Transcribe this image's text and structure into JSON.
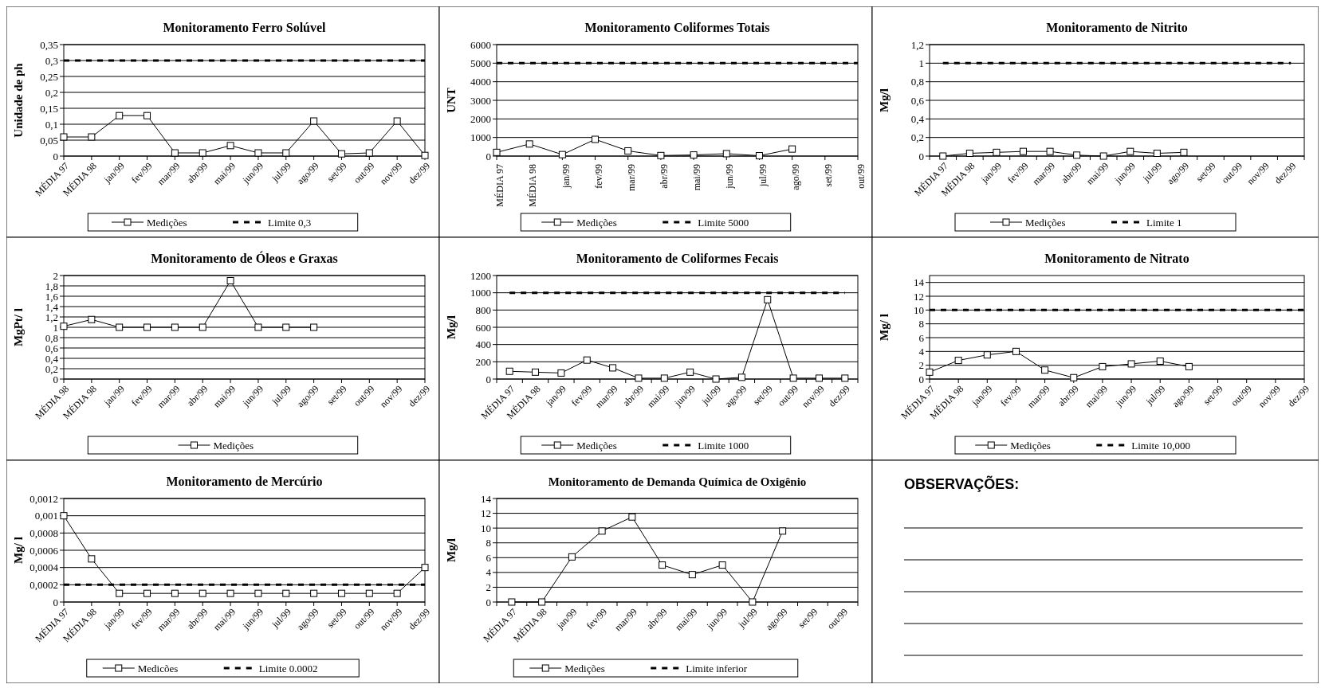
{
  "chart_data": [
    {
      "type": "line",
      "title": "Monitoramento Ferro Solúvel",
      "ylabel": "Unidade de ph",
      "categories": [
        "MÉDIA 97",
        "MÉDIA 98",
        "jan/99",
        "fev/99",
        "mar/99",
        "abr/99",
        "mai/99",
        "jun/99",
        "jul/99",
        "ago/99",
        "set/99",
        "out/99",
        "nov/99",
        "dez/99"
      ],
      "ylim": [
        0,
        0.35
      ],
      "yticks": [
        0,
        {
          "value": 0.05,
          "label": "0,05"
        },
        {
          "value": 0.1,
          "label": "0,1"
        },
        {
          "value": 0.15,
          "label": "0,15"
        },
        {
          "value": 0.2,
          "label": "0,2"
        },
        {
          "value": 0.25,
          "label": "0,25"
        },
        {
          "value": 0.3,
          "label": "0,3"
        },
        {
          "value": 0.35,
          "label": "0,35"
        }
      ],
      "grid": "y",
      "legend": "bottom",
      "series": [
        {
          "name": "Medições",
          "color": "#000000",
          "marker": "square",
          "line_style": "solid",
          "values": [
            0.06,
            0.06,
            0.127,
            0.127,
            0.01,
            0.01,
            0.033,
            0.01,
            0.01,
            0.11,
            0.007,
            0.01,
            0.11,
            0.002
          ]
        },
        {
          "name": "Limite 0,3",
          "color": "#000000",
          "marker": "none",
          "line_style": "dashed",
          "values": [
            0.3,
            0.3,
            0.3,
            0.3,
            0.3,
            0.3,
            0.3,
            0.3,
            0.3,
            0.3,
            0.3,
            0.3,
            0.3,
            0.3
          ]
        }
      ]
    },
    {
      "type": "line",
      "title": "Monitoramento Coliformes Totais",
      "ylabel": "UNT",
      "categories": [
        "MÉDIA 97",
        "MÉDIA 98",
        "jan/99",
        "fev/99",
        "mar/99",
        "abr/99",
        "mai/99",
        "jun/99",
        "jul/99",
        "ago/99",
        "set/99",
        "out/99"
      ],
      "ylim": [
        0,
        6000
      ],
      "yticks": [
        0,
        1000,
        2000,
        3000,
        4000,
        5000,
        6000
      ],
      "grid": "y",
      "legend": "bottom",
      "series": [
        {
          "name": "Medições",
          "color": "#000000",
          "marker": "square",
          "line_style": "solid",
          "values": [
            200,
            650,
            80,
            900,
            280,
            30,
            60,
            130,
            20,
            380,
            null,
            null
          ]
        },
        {
          "name": "Limite 5000",
          "color": "#000000",
          "marker": "none",
          "line_style": "dashed",
          "values": [
            5000,
            5000,
            5000,
            5000,
            5000,
            5000,
            5000,
            5000,
            5000,
            5000,
            5000,
            5000
          ]
        }
      ]
    },
    {
      "type": "line",
      "title": "Monitoramento de Nitrito",
      "ylabel": "Mg/l",
      "categories": [
        "MÉDIA 97",
        "MÉDIA 98",
        "jan/99",
        "fev/99",
        "mar/99",
        "abr/99",
        "mai/99",
        "jun/99",
        "jul/99",
        "ago/99",
        "set/99",
        "out/99",
        "nov/99",
        "dez/99"
      ],
      "ylim": [
        0,
        1.2
      ],
      "yticks": [
        0,
        {
          "value": 0.2,
          "label": "0,2"
        },
        {
          "value": 0.4,
          "label": "0,4"
        },
        {
          "value": 0.6,
          "label": "0,6"
        },
        {
          "value": 0.8,
          "label": "0,8"
        },
        1,
        {
          "value": 1.2,
          "label": "1,2"
        }
      ],
      "grid": "y",
      "legend": "bottom",
      "series": [
        {
          "name": "Medições",
          "color": "#000000",
          "marker": "square",
          "line_style": "solid",
          "values": [
            0,
            0.03,
            0.04,
            0.05,
            0.05,
            0.01,
            0,
            0.05,
            0.03,
            0.04,
            null,
            null,
            null,
            null
          ]
        },
        {
          "name": "Limite 1",
          "color": "#000000",
          "marker": "none",
          "line_style": "dashed",
          "values": [
            1,
            1,
            1,
            1,
            1,
            1,
            1,
            1,
            1,
            1,
            1,
            1,
            1,
            1
          ]
        }
      ]
    },
    {
      "type": "line",
      "title": "Monitoramento de Óleos e Graxas",
      "ylabel": "MgPt/ l",
      "categories": [
        "MÉDIA 98",
        "MÉDIA 98",
        "jan/99",
        "fev/99",
        "mar/99",
        "abr/99",
        "mai/99",
        "jun/99",
        "jul/99",
        "ago/99",
        "set/99",
        "out/99",
        "nov/99",
        "dez/99"
      ],
      "ylim": [
        0,
        2
      ],
      "yticks": [
        0,
        {
          "value": 0.2,
          "label": "0,2"
        },
        {
          "value": 0.4,
          "label": "0,4"
        },
        {
          "value": 0.6,
          "label": "0,6"
        },
        {
          "value": 0.8,
          "label": "0,8"
        },
        1,
        {
          "value": 1.2,
          "label": "1,2"
        },
        {
          "value": 1.4,
          "label": "1,4"
        },
        {
          "value": 1.6,
          "label": "1,6"
        },
        {
          "value": 1.8,
          "label": "1,8"
        },
        2
      ],
      "grid": "y",
      "legend": "bottom",
      "series": [
        {
          "name": "Medições",
          "color": "#000000",
          "marker": "square",
          "line_style": "solid",
          "values": [
            1.02,
            1.15,
            1,
            1,
            1,
            1,
            1.9,
            1,
            1,
            1,
            null,
            null,
            null,
            null
          ]
        }
      ]
    },
    {
      "type": "line",
      "title": "Monitoramento de Coliformes Fecais",
      "ylabel": "Mg/l",
      "categories": [
        "MÉDIA 97",
        "MÉDIA 98",
        "jan/99",
        "fev/99",
        "mar/99",
        "abr/99",
        "mai/99",
        "jun/99",
        "jul/99",
        "ago/99",
        "set/99",
        "out/99",
        "nov/99",
        "dez/99"
      ],
      "ylim": [
        0,
        1200
      ],
      "yticks": [
        0,
        200,
        400,
        600,
        800,
        1000,
        1200
      ],
      "grid": "y",
      "legend": "bottom",
      "series": [
        {
          "name": "Medições",
          "color": "#000000",
          "marker": "square",
          "line_style": "solid",
          "values": [
            90,
            80,
            70,
            220,
            130,
            10,
            10,
            80,
            0,
            20,
            920,
            10,
            10,
            10
          ]
        },
        {
          "name": "Limite 1000",
          "color": "#000000",
          "marker": "none",
          "line_style": "dashed",
          "values": [
            1000,
            1000,
            1000,
            1000,
            1000,
            1000,
            1000,
            1000,
            1000,
            1000,
            1000,
            1000,
            1000,
            1000
          ]
        }
      ]
    },
    {
      "type": "line",
      "title": "Monitoramento de Nitrato",
      "ylabel": "Mg/ l",
      "categories": [
        "MÉDIA 97",
        "MÉDIA 98",
        "jan/99",
        "fev/99",
        "mar/99",
        "abr/99",
        "mai/99",
        "jun/99",
        "jul/99",
        "ago/99",
        "set/99",
        "out/99",
        "nov/99",
        "dez/99"
      ],
      "ylim": [
        0,
        15
      ],
      "yticks": [
        0,
        2,
        4,
        6,
        8,
        10,
        12,
        14
      ],
      "grid": "y",
      "legend": "bottom",
      "series": [
        {
          "name": "Medições",
          "color": "#000000",
          "marker": "square",
          "line_style": "solid",
          "values": [
            1,
            2.7,
            3.5,
            4,
            1.3,
            0.2,
            1.8,
            2.2,
            2.6,
            1.8,
            null,
            null,
            null,
            null
          ]
        },
        {
          "name": "Limite 10,000",
          "color": "#000000",
          "marker": "none",
          "line_style": "dashed",
          "values": [
            10,
            10,
            10,
            10,
            10,
            10,
            10,
            10,
            10,
            10,
            10,
            10,
            10,
            10
          ]
        }
      ]
    },
    {
      "type": "line",
      "title": "Monitoramento de Mercúrio",
      "ylabel": "Mg/ l",
      "categories": [
        "MÉDIA 97",
        "MÉDIA 98",
        "jan/99",
        "fev/99",
        "mar/99",
        "abr/99",
        "mai/99",
        "jun/99",
        "jul/99",
        "ago/99",
        "set/99",
        "out/99",
        "nov/99",
        "dez/99"
      ],
      "ylim": [
        0,
        0.0012
      ],
      "yticks": [
        0,
        {
          "value": 0.0002,
          "label": "0,0002"
        },
        {
          "value": 0.0004,
          "label": "0,0004"
        },
        {
          "value": 0.0006,
          "label": "0,0006"
        },
        {
          "value": 0.0008,
          "label": "0,0008"
        },
        {
          "value": 0.001,
          "label": "0,001"
        },
        {
          "value": 0.0012,
          "label": "0,0012"
        }
      ],
      "grid": "y",
      "legend": "bottom",
      "series": [
        {
          "name": "Medicões",
          "color": "#000000",
          "marker": "square",
          "line_style": "solid",
          "values": [
            0.001,
            0.0005,
            0.0001,
            0.0001,
            0.0001,
            0.0001,
            0.0001,
            0.0001,
            0.0001,
            0.0001,
            0.0001,
            0.0001,
            0.0001,
            0.0004
          ]
        },
        {
          "name": "Limite 0.0002",
          "color": "#000000",
          "marker": "none",
          "line_style": "dashed",
          "values": [
            0.0002,
            0.0002,
            0.0002,
            0.0002,
            0.0002,
            0.0002,
            0.0002,
            0.0002,
            0.0002,
            0.0002,
            0.0002,
            0.0002,
            0.0002,
            0.0002
          ]
        }
      ]
    },
    {
      "type": "line",
      "title": "Monitoramento de Demanda Química de Oxigênio",
      "ylabel": "Mg/l",
      "categories": [
        "MÉDIA 97",
        "MÉDIA 98",
        "jan/99",
        "fev/99",
        "mar/99",
        "abr/99",
        "mai/99",
        "jun/99",
        "jul/99",
        "ago/99",
        "set/99",
        "out/99"
      ],
      "ylim": [
        0,
        14
      ],
      "yticks": [
        0,
        2,
        4,
        6,
        8,
        10,
        12,
        14
      ],
      "grid": "y",
      "legend": "bottom",
      "series": [
        {
          "name": "Medições",
          "color": "#000000",
          "marker": "square",
          "line_style": "solid",
          "values": [
            0,
            0,
            6.1,
            9.6,
            11.5,
            5,
            3.7,
            5,
            0,
            9.6,
            null,
            null
          ]
        },
        {
          "name": "Limite inferior",
          "color": "#000000",
          "marker": "none",
          "line_style": "dashed",
          "values": [
            null,
            null,
            null,
            null,
            null,
            null,
            null,
            null,
            null,
            null,
            null,
            null
          ]
        }
      ]
    },
    {
      "type": "other",
      "title": "OBSERVAÇÕES:"
    }
  ]
}
